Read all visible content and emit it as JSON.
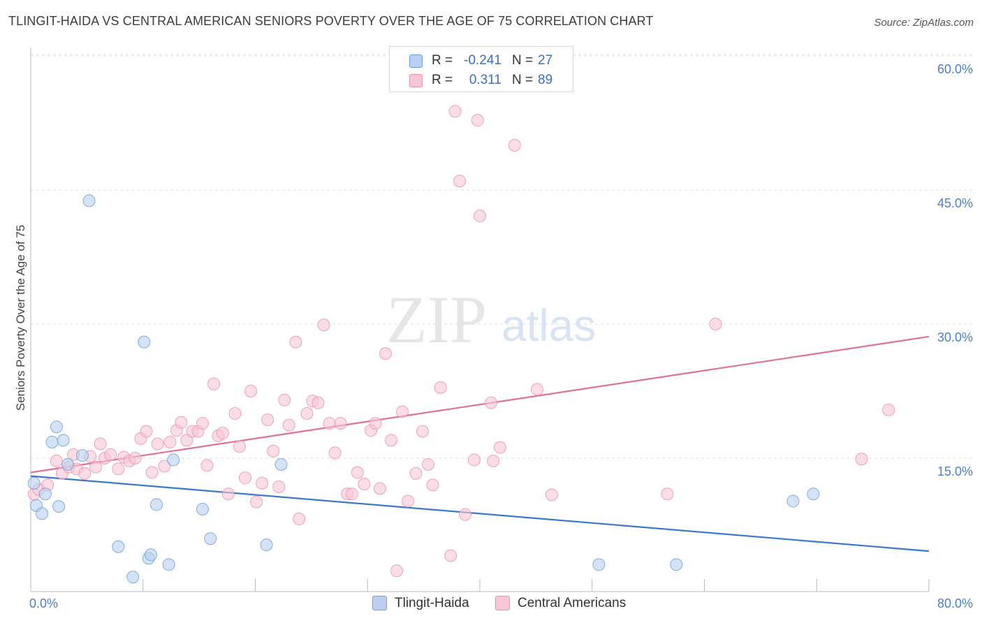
{
  "title": "TLINGIT-HAIDA VS CENTRAL AMERICAN SENIORS POVERTY OVER THE AGE OF 75 CORRELATION CHART",
  "source": "Source: ZipAtlas.com",
  "watermark": {
    "zip": "ZIP",
    "atlas": "atlas"
  },
  "legend": {
    "rows": [
      {
        "r_label": "R =",
        "r_value": "-0.241",
        "n_label": "N =",
        "n_value": "27"
      },
      {
        "r_label": "R =",
        "r_value": "0.311",
        "n_label": "N =",
        "n_value": "89"
      }
    ]
  },
  "bottom_legend": {
    "items": [
      "Tlingit-Haida",
      "Central Americans"
    ]
  },
  "colors": {
    "blue_fill": "#b9d0f0",
    "blue_stroke": "#6f9fdc",
    "blue_line": "#3a78c9",
    "pink_fill": "#f8c6d6",
    "pink_stroke": "#ec92b0",
    "pink_line": "#e07098",
    "grid": "#dddddd",
    "axis_text": "#4a7fd1"
  },
  "chart_data": {
    "type": "scatter",
    "title": "TLINGIT-HAIDA VS CENTRAL AMERICAN SENIORS POVERTY OVER THE AGE OF 75 CORRELATION CHART",
    "xlabel": "",
    "ylabel": "Seniors Poverty Over the Age of 75",
    "xlim": [
      0,
      80
    ],
    "ylim": [
      0,
      62
    ],
    "x_tick_labels": [
      "0.0%",
      "80.0%"
    ],
    "y_ticks": [
      15,
      30,
      45,
      60
    ],
    "y_tick_labels": [
      "15.0%",
      "30.0%",
      "45.0%",
      "60.0%"
    ],
    "grid": true,
    "legend_position": "top-center",
    "series": [
      {
        "name": "Tlingit-Haida",
        "color": "#6f9fdc",
        "points": [
          [
            0.3,
            12.2
          ],
          [
            0.5,
            9.7
          ],
          [
            1.0,
            8.8
          ],
          [
            1.3,
            11.0
          ],
          [
            1.9,
            16.8
          ],
          [
            2.3,
            18.5
          ],
          [
            2.5,
            9.6
          ],
          [
            2.9,
            17.0
          ],
          [
            3.3,
            14.3
          ],
          [
            4.6,
            15.3
          ],
          [
            5.2,
            43.8
          ],
          [
            7.8,
            5.1
          ],
          [
            9.1,
            1.7
          ],
          [
            10.1,
            28.0
          ],
          [
            10.5,
            3.8
          ],
          [
            10.7,
            4.2
          ],
          [
            11.2,
            9.8
          ],
          [
            12.3,
            3.1
          ],
          [
            12.7,
            14.8
          ],
          [
            15.3,
            9.3
          ],
          [
            16.0,
            6.0
          ],
          [
            21.0,
            5.3
          ],
          [
            22.3,
            14.3
          ],
          [
            50.6,
            3.1
          ],
          [
            57.5,
            3.1
          ],
          [
            67.9,
            10.2
          ],
          [
            69.7,
            11.0
          ]
        ],
        "trendline": {
          "x": [
            0,
            80
          ],
          "y": [
            13.0,
            4.6
          ]
        }
      },
      {
        "name": "Central Americans",
        "color": "#ec92b0",
        "points": [
          [
            0.3,
            11.0
          ],
          [
            0.7,
            11.5
          ],
          [
            1.5,
            12.0
          ],
          [
            2.3,
            14.7
          ],
          [
            2.8,
            13.3
          ],
          [
            3.4,
            14.0
          ],
          [
            3.8,
            15.4
          ],
          [
            4.1,
            13.8
          ],
          [
            4.8,
            13.3
          ],
          [
            5.3,
            15.2
          ],
          [
            5.8,
            14.0
          ],
          [
            6.2,
            16.6
          ],
          [
            6.6,
            15.0
          ],
          [
            7.1,
            15.4
          ],
          [
            7.8,
            13.8
          ],
          [
            8.3,
            15.1
          ],
          [
            8.8,
            14.7
          ],
          [
            9.3,
            15.0
          ],
          [
            9.8,
            17.2
          ],
          [
            10.3,
            18.0
          ],
          [
            10.8,
            13.4
          ],
          [
            11.3,
            16.6
          ],
          [
            11.9,
            14.1
          ],
          [
            12.4,
            16.8
          ],
          [
            13.0,
            18.1
          ],
          [
            13.4,
            19.0
          ],
          [
            13.9,
            17.0
          ],
          [
            14.4,
            18.0
          ],
          [
            14.9,
            18.0
          ],
          [
            15.3,
            18.9
          ],
          [
            15.7,
            14.2
          ],
          [
            16.3,
            23.3
          ],
          [
            16.7,
            17.5
          ],
          [
            17.1,
            17.8
          ],
          [
            17.6,
            11.0
          ],
          [
            18.2,
            20.0
          ],
          [
            18.6,
            16.3
          ],
          [
            19.1,
            12.8
          ],
          [
            19.6,
            22.5
          ],
          [
            20.1,
            10.1
          ],
          [
            20.6,
            12.2
          ],
          [
            21.1,
            19.3
          ],
          [
            21.6,
            15.8
          ],
          [
            22.1,
            11.8
          ],
          [
            22.6,
            21.5
          ],
          [
            23.0,
            18.7
          ],
          [
            23.6,
            28.0
          ],
          [
            23.9,
            8.2
          ],
          [
            24.6,
            20.0
          ],
          [
            25.1,
            21.4
          ],
          [
            25.6,
            21.2
          ],
          [
            26.1,
            29.9
          ],
          [
            26.6,
            18.9
          ],
          [
            27.1,
            15.6
          ],
          [
            27.6,
            18.9
          ],
          [
            28.2,
            11.0
          ],
          [
            28.6,
            11.0
          ],
          [
            29.1,
            13.4
          ],
          [
            29.7,
            12.1
          ],
          [
            30.3,
            18.1
          ],
          [
            30.7,
            18.9
          ],
          [
            31.1,
            11.6
          ],
          [
            31.6,
            26.7
          ],
          [
            32.1,
            17.0
          ],
          [
            32.6,
            2.4
          ],
          [
            33.1,
            20.2
          ],
          [
            33.6,
            10.2
          ],
          [
            34.3,
            13.3
          ],
          [
            34.9,
            18.0
          ],
          [
            35.4,
            14.3
          ],
          [
            35.8,
            12.0
          ],
          [
            36.5,
            22.9
          ],
          [
            37.4,
            4.1
          ],
          [
            37.8,
            53.8
          ],
          [
            38.2,
            46.0
          ],
          [
            38.7,
            8.7
          ],
          [
            39.5,
            14.8
          ],
          [
            39.8,
            52.8
          ],
          [
            40.0,
            42.1
          ],
          [
            41.0,
            21.2
          ],
          [
            41.2,
            14.7
          ],
          [
            41.8,
            16.2
          ],
          [
            43.1,
            50.0
          ],
          [
            45.1,
            22.7
          ],
          [
            46.4,
            10.9
          ],
          [
            56.7,
            11.0
          ],
          [
            61.0,
            30.0
          ],
          [
            76.4,
            20.4
          ],
          [
            74.0,
            14.9
          ]
        ],
        "trendline": {
          "x": [
            0,
            80
          ],
          "y": [
            13.4,
            28.6
          ]
        }
      }
    ]
  }
}
